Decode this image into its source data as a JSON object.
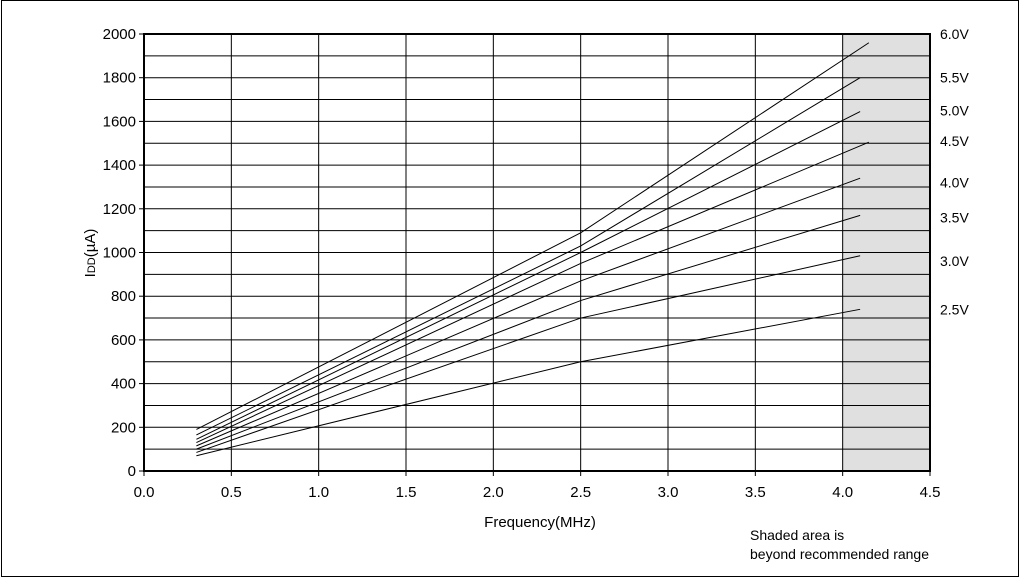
{
  "chart_data": {
    "type": "line",
    "xlabel": "Frequency(MHz)",
    "ylabel_main": "I",
    "ylabel_sub": "DD",
    "ylabel_unit": "(µA)",
    "xlim": [
      0.0,
      4.5
    ],
    "ylim": [
      0,
      2000
    ],
    "x_ticks": [
      "0.0",
      "0.5",
      "1.0",
      "1.5",
      "2.0",
      "2.5",
      "3.0",
      "3.5",
      "4.0",
      "4.5"
    ],
    "x_tick_values": [
      0.0,
      0.5,
      1.0,
      1.5,
      2.0,
      2.5,
      3.0,
      3.5,
      4.0,
      4.5
    ],
    "y_ticks": [
      "0",
      "200",
      "400",
      "600",
      "800",
      "1000",
      "1200",
      "1400",
      "1600",
      "1800",
      "2000"
    ],
    "y_tick_values": [
      0,
      200,
      400,
      600,
      800,
      1000,
      1200,
      1400,
      1600,
      1800,
      2000
    ],
    "y_minor_step": 100,
    "grid": true,
    "shaded_region": {
      "x_from": 4.0,
      "x_to": 4.5,
      "color": "#e0e0e0"
    },
    "note_lines": [
      "Shaded area is",
      "beyond recommended range"
    ],
    "series": [
      {
        "name": "2.5V",
        "points": [
          [
            0.3,
            70
          ],
          [
            2.5,
            500
          ],
          [
            4.1,
            740
          ]
        ]
      },
      {
        "name": "3.0V",
        "points": [
          [
            0.3,
            85
          ],
          [
            2.5,
            700
          ],
          [
            4.1,
            985
          ]
        ]
      },
      {
        "name": "3.5V",
        "points": [
          [
            0.3,
            100
          ],
          [
            2.5,
            780
          ],
          [
            4.1,
            1170
          ]
        ]
      },
      {
        "name": "4.0V",
        "points": [
          [
            0.3,
            115
          ],
          [
            2.5,
            870
          ],
          [
            4.1,
            1340
          ]
        ]
      },
      {
        "name": "4.5V",
        "points": [
          [
            0.3,
            130
          ],
          [
            2.5,
            950
          ],
          [
            4.15,
            1505
          ]
        ]
      },
      {
        "name": "5.0V",
        "points": [
          [
            0.3,
            145
          ],
          [
            2.5,
            1000
          ],
          [
            4.1,
            1645
          ]
        ]
      },
      {
        "name": "5.5V",
        "points": [
          [
            0.3,
            165
          ],
          [
            2.5,
            1030
          ],
          [
            4.1,
            1800
          ]
        ]
      },
      {
        "name": "6.0V",
        "points": [
          [
            0.3,
            190
          ],
          [
            2.5,
            1090
          ],
          [
            4.15,
            1960
          ]
        ]
      }
    ],
    "label_values": [
      2000,
      1800,
      1650,
      1510,
      1320,
      1160,
      960,
      740
    ]
  },
  "colors": {
    "line": "#000000",
    "grid": "#000000",
    "shade": "#e0e0e0"
  }
}
